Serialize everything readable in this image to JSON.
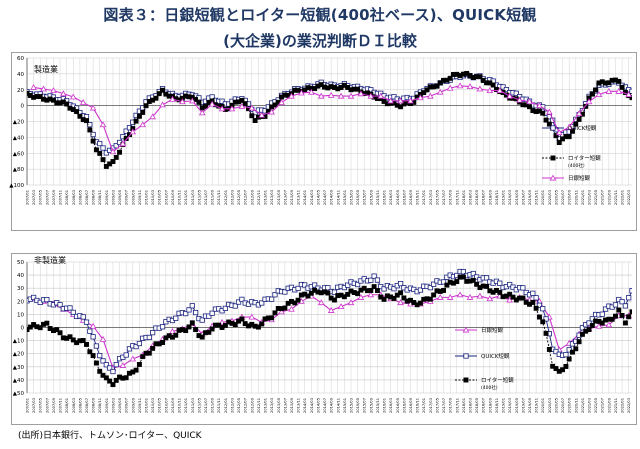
{
  "title_line1": "図表３：日銀短観とロイター短観(400社ベース)、QUICK短観",
  "title_line2": "(大企業)の業況判断ＤＩ比較",
  "source": "(出所)日本銀行、トムソン･ロイター、QUICK",
  "colors": {
    "quick": "#1a237e",
    "reuters": "#000000",
    "tankan": "#cc33cc",
    "grid": "#c8c8c8"
  },
  "chart_data": [
    {
      "type": "line",
      "title": "製造業",
      "ylim": [
        -100,
        60
      ],
      "yticks": [
        60,
        40,
        20,
        0,
        -20,
        -40,
        -60,
        -80,
        -100
      ],
      "ytick_labels": [
        "60",
        "40",
        "20",
        "0",
        "▲20",
        "▲40",
        "▲60",
        "▲80",
        "▲100"
      ],
      "grid": true,
      "legend_position": "right",
      "x_start": "2007/01",
      "x_end": "2022/04",
      "xtick_step_months": 2,
      "series": [
        {
          "name": "QUICK短観",
          "marker": "open-square",
          "style": "solid",
          "x": [
            "2007/01",
            "2007/07",
            "2008/01",
            "2008/07",
            "2008/10",
            "2009/01",
            "2009/03",
            "2009/06",
            "2009/09",
            "2010/01",
            "2010/06",
            "2010/10",
            "2011/03",
            "2011/06",
            "2011/09",
            "2012/01",
            "2012/06",
            "2012/10",
            "2013/01",
            "2013/06",
            "2013/10",
            "2014/01",
            "2014/06",
            "2014/10",
            "2015/01",
            "2015/06",
            "2015/10",
            "2016/01",
            "2016/06",
            "2016/10",
            "2017/01",
            "2017/06",
            "2017/10",
            "2018/01",
            "2018/06",
            "2018/10",
            "2019/01",
            "2019/06",
            "2019/10",
            "2020/01",
            "2020/04",
            "2020/06",
            "2020/09",
            "2020/12",
            "2021/03",
            "2021/06",
            "2021/09",
            "2021/12",
            "2022/02",
            "2022/04"
          ],
          "y": [
            16,
            12,
            6,
            -15,
            -45,
            -58,
            -55,
            -40,
            -20,
            5,
            20,
            12,
            15,
            5,
            10,
            2,
            10,
            -8,
            -5,
            12,
            20,
            22,
            28,
            25,
            26,
            22,
            18,
            12,
            8,
            10,
            20,
            28,
            35,
            38,
            36,
            30,
            22,
            12,
            2,
            -2,
            -20,
            -40,
            -32,
            -12,
            10,
            25,
            28,
            30,
            22,
            18
          ]
        },
        {
          "name": "ロイター短観",
          "name_note": "(400社)",
          "marker": "filled-square",
          "style": "dashed",
          "x": [
            "2007/01",
            "2007/07",
            "2008/01",
            "2008/07",
            "2008/10",
            "2009/01",
            "2009/03",
            "2009/06",
            "2009/09",
            "2010/01",
            "2010/06",
            "2010/10",
            "2011/03",
            "2011/06",
            "2011/09",
            "2012/01",
            "2012/06",
            "2012/10",
            "2013/01",
            "2013/06",
            "2013/10",
            "2014/01",
            "2014/06",
            "2014/10",
            "2015/01",
            "2015/06",
            "2015/10",
            "2016/01",
            "2016/06",
            "2016/10",
            "2017/01",
            "2017/06",
            "2017/10",
            "2018/01",
            "2018/06",
            "2018/10",
            "2019/01",
            "2019/06",
            "2019/10",
            "2020/01",
            "2020/04",
            "2020/06",
            "2020/09",
            "2020/12",
            "2021/03",
            "2021/06",
            "2021/09",
            "2021/12",
            "2022/02",
            "2022/04"
          ],
          "y": [
            14,
            8,
            2,
            -20,
            -55,
            -75,
            -72,
            -50,
            -28,
            0,
            18,
            8,
            12,
            -2,
            5,
            -5,
            8,
            -18,
            -12,
            10,
            18,
            20,
            25,
            22,
            24,
            18,
            12,
            5,
            0,
            5,
            18,
            28,
            38,
            40,
            35,
            25,
            15,
            5,
            -5,
            -10,
            -30,
            -45,
            -38,
            -18,
            8,
            28,
            30,
            32,
            15,
            10
          ]
        },
        {
          "name": "日銀短観",
          "marker": "open-triangle",
          "style": "solid",
          "x": [
            "2007/03",
            "2007/09",
            "2008/03",
            "2008/09",
            "2008/12",
            "2009/03",
            "2009/06",
            "2009/09",
            "2009/12",
            "2010/03",
            "2010/06",
            "2010/09",
            "2010/12",
            "2011/03",
            "2011/06",
            "2011/09",
            "2011/12",
            "2012/03",
            "2012/06",
            "2012/09",
            "2012/12",
            "2013/03",
            "2013/06",
            "2013/09",
            "2013/12",
            "2014/03",
            "2014/06",
            "2014/09",
            "2014/12",
            "2015/03",
            "2015/06",
            "2015/09",
            "2015/12",
            "2016/03",
            "2016/06",
            "2016/09",
            "2016/12",
            "2017/03",
            "2017/06",
            "2017/09",
            "2017/12",
            "2018/03",
            "2018/06",
            "2018/09",
            "2018/12",
            "2019/03",
            "2019/06",
            "2019/09",
            "2019/12",
            "2020/03",
            "2020/06",
            "2020/09",
            "2020/12",
            "2021/03",
            "2021/06",
            "2021/09",
            "2021/12",
            "2022/03"
          ],
          "y": [
            23,
            19,
            11,
            -3,
            -24,
            -58,
            -48,
            -33,
            -24,
            -14,
            1,
            8,
            5,
            6,
            -9,
            2,
            -4,
            -4,
            -1,
            -3,
            -12,
            -8,
            4,
            12,
            16,
            17,
            12,
            13,
            12,
            12,
            15,
            12,
            12,
            6,
            6,
            6,
            10,
            12,
            17,
            22,
            25,
            24,
            21,
            19,
            19,
            12,
            7,
            5,
            0,
            -8,
            -34,
            -27,
            -10,
            5,
            14,
            18,
            18,
            14
          ]
        }
      ]
    },
    {
      "type": "line",
      "title": "非製造業",
      "ylim": [
        -50,
        50
      ],
      "yticks": [
        50,
        40,
        30,
        20,
        10,
        0,
        -10,
        -20,
        -30,
        -40,
        -50
      ],
      "ytick_labels": [
        "50",
        "40",
        "30",
        "20",
        "10",
        "0",
        "▲10",
        "▲20",
        "▲30",
        "▲40",
        "▲50"
      ],
      "grid": true,
      "legend_position": "right",
      "x_start": "2007/01",
      "x_end": "2022/04",
      "xtick_step_months": 2,
      "series": [
        {
          "name": "日銀短観",
          "marker": "open-triangle",
          "style": "solid",
          "x": [
            "2007/03",
            "2007/09",
            "2008/03",
            "2008/09",
            "2008/12",
            "2009/03",
            "2009/06",
            "2009/09",
            "2009/12",
            "2010/03",
            "2010/06",
            "2010/09",
            "2010/12",
            "2011/03",
            "2011/06",
            "2011/09",
            "2011/12",
            "2012/03",
            "2012/06",
            "2012/09",
            "2012/12",
            "2013/03",
            "2013/06",
            "2013/09",
            "2013/12",
            "2014/03",
            "2014/06",
            "2014/09",
            "2014/12",
            "2015/03",
            "2015/06",
            "2015/09",
            "2015/12",
            "2016/03",
            "2016/06",
            "2016/09",
            "2016/12",
            "2017/03",
            "2017/06",
            "2017/09",
            "2017/12",
            "2018/03",
            "2018/06",
            "2018/09",
            "2018/12",
            "2019/03",
            "2019/06",
            "2019/09",
            "2019/12",
            "2020/03",
            "2020/06",
            "2020/09",
            "2020/12",
            "2021/03",
            "2021/06",
            "2021/09",
            "2021/12",
            "2022/03"
          ],
          "y": [
            22,
            18,
            10,
            1,
            -9,
            -31,
            -29,
            -24,
            -21,
            -14,
            -9,
            -3,
            -1,
            3,
            -5,
            1,
            4,
            5,
            8,
            8,
            4,
            6,
            12,
            14,
            20,
            24,
            19,
            13,
            16,
            19,
            23,
            25,
            25,
            22,
            19,
            18,
            18,
            20,
            23,
            23,
            25,
            23,
            24,
            22,
            24,
            21,
            23,
            21,
            20,
            8,
            -17,
            -12,
            -5,
            -1,
            1,
            2,
            9,
            9
          ]
        },
        {
          "name": "QUICK短観",
          "marker": "open-square",
          "style": "solid",
          "x": [
            "2007/01",
            "2007/07",
            "2008/01",
            "2008/07",
            "2008/10",
            "2009/01",
            "2009/03",
            "2009/06",
            "2009/09",
            "2010/01",
            "2010/06",
            "2010/10",
            "2011/03",
            "2011/06",
            "2011/09",
            "2012/01",
            "2012/06",
            "2012/10",
            "2013/01",
            "2013/06",
            "2013/10",
            "2014/01",
            "2014/06",
            "2014/10",
            "2015/01",
            "2015/06",
            "2015/10",
            "2016/01",
            "2016/06",
            "2016/10",
            "2017/01",
            "2017/06",
            "2017/10",
            "2018/01",
            "2018/06",
            "2018/10",
            "2019/01",
            "2019/06",
            "2019/10",
            "2020/01",
            "2020/04",
            "2020/06",
            "2020/09",
            "2020/12",
            "2021/03",
            "2021/06",
            "2021/09",
            "2021/12",
            "2022/02",
            "2022/04"
          ],
          "y": [
            22,
            20,
            15,
            5,
            -15,
            -30,
            -32,
            -22,
            -15,
            -8,
            2,
            8,
            15,
            5,
            12,
            15,
            20,
            18,
            20,
            28,
            30,
            32,
            30,
            28,
            32,
            35,
            38,
            30,
            32,
            28,
            30,
            35,
            40,
            42,
            38,
            35,
            32,
            30,
            25,
            15,
            -15,
            -22,
            -18,
            -5,
            5,
            10,
            15,
            20,
            18,
            28
          ]
        },
        {
          "name": "ロイター短観",
          "name_note": "(400社)",
          "marker": "filled-square",
          "style": "dashed",
          "x": [
            "2007/01",
            "2007/07",
            "2008/01",
            "2008/07",
            "2008/10",
            "2009/01",
            "2009/03",
            "2009/06",
            "2009/09",
            "2010/01",
            "2010/06",
            "2010/10",
            "2011/03",
            "2011/06",
            "2011/09",
            "2012/01",
            "2012/06",
            "2012/10",
            "2013/01",
            "2013/06",
            "2013/10",
            "2014/01",
            "2014/06",
            "2014/10",
            "2015/01",
            "2015/06",
            "2015/10",
            "2016/01",
            "2016/06",
            "2016/10",
            "2017/01",
            "2017/06",
            "2017/10",
            "2018/01",
            "2018/06",
            "2018/10",
            "2019/01",
            "2019/06",
            "2019/10",
            "2020/01",
            "2020/04",
            "2020/06",
            "2020/09",
            "2020/12",
            "2021/03",
            "2021/06",
            "2021/09",
            "2021/12",
            "2022/02",
            "2022/04"
          ],
          "y": [
            0,
            2,
            -8,
            -12,
            -28,
            -40,
            -42,
            -38,
            -35,
            -20,
            -10,
            -5,
            2,
            -8,
            0,
            2,
            5,
            0,
            5,
            15,
            20,
            25,
            28,
            22,
            25,
            28,
            30,
            22,
            25,
            18,
            20,
            28,
            35,
            38,
            32,
            28,
            25,
            22,
            18,
            5,
            -28,
            -35,
            -25,
            -10,
            0,
            5,
            5,
            12,
            5,
            12
          ]
        }
      ]
    }
  ]
}
